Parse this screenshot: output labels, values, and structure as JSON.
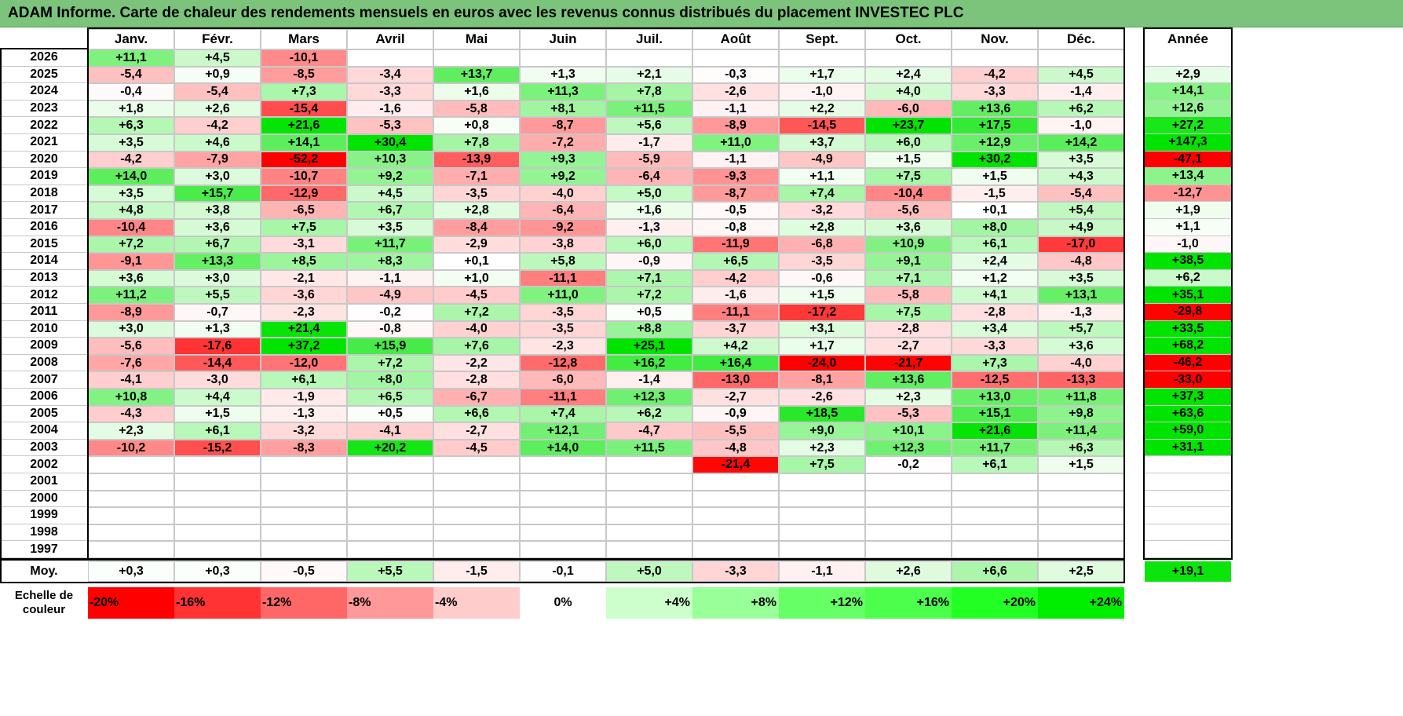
{
  "title": "ADAM Informe. Carte de chaleur des rendements mensuels en euros avec les revenus connus distribués du placement INVESTEC PLC",
  "chart_data": {
    "type": "heatmap",
    "title": "ADAM Informe. Carte de chaleur des rendements mensuels en euros avec les revenus connus distribués du placement INVESTEC PLC",
    "months": [
      "Janv.",
      "Févr.",
      "Mars",
      "Avril",
      "Mai",
      "Juin",
      "Juil.",
      "Août",
      "Sept.",
      "Oct.",
      "Nov.",
      "Déc."
    ],
    "annual_label": "Année",
    "rows": [
      {
        "year": "2026",
        "values": [
          "+11,1",
          "+4,5",
          "-10,1",
          "",
          "",
          "",
          "",
          "",
          "",
          "",
          "",
          ""
        ],
        "annual": ""
      },
      {
        "year": "2025",
        "values": [
          "-5,4",
          "+0,9",
          "-8,5",
          "-3,4",
          "+13,7",
          "+1,3",
          "+2,1",
          "-0,3",
          "+1,7",
          "+2,4",
          "-4,2",
          "+4,5"
        ],
        "annual": "+2,9"
      },
      {
        "year": "2024",
        "values": [
          "-0,4",
          "-5,4",
          "+7,3",
          "-3,3",
          "+1,6",
          "+11,3",
          "+7,8",
          "-2,6",
          "-1,0",
          "+4,0",
          "-3,3",
          "-1,4"
        ],
        "annual": "+14,1"
      },
      {
        "year": "2023",
        "values": [
          "+1,8",
          "+2,6",
          "-15,4",
          "-1,6",
          "-5,8",
          "+8,1",
          "+11,5",
          "-1,1",
          "+2,2",
          "-6,0",
          "+13,6",
          "+6,2"
        ],
        "annual": "+12,6"
      },
      {
        "year": "2022",
        "values": [
          "+6,3",
          "-4,2",
          "+21,6",
          "-5,3",
          "+0,8",
          "-8,7",
          "+5,6",
          "-8,9",
          "-14,5",
          "+23,7",
          "+17,5",
          "-1,0"
        ],
        "annual": "+27,2"
      },
      {
        "year": "2021",
        "values": [
          "+3,5",
          "+4,6",
          "+14,1",
          "+30,4",
          "+7,8",
          "-7,2",
          "-1,7",
          "+11,0",
          "+3,7",
          "+6,0",
          "+12,9",
          "+14,2"
        ],
        "annual": "+147,3"
      },
      {
        "year": "2020",
        "values": [
          "-4,2",
          "-7,9",
          "-52,2",
          "+10,3",
          "-13,9",
          "+9,3",
          "-5,9",
          "-1,1",
          "-4,9",
          "+1,5",
          "+30,2",
          "+3,5"
        ],
        "annual": "-47,1"
      },
      {
        "year": "2019",
        "values": [
          "+14,0",
          "+3,0",
          "-10,7",
          "+9,2",
          "-7,1",
          "+9,2",
          "-6,4",
          "-9,3",
          "+1,1",
          "+7,5",
          "+1,5",
          "+4,3"
        ],
        "annual": "+13,4"
      },
      {
        "year": "2018",
        "values": [
          "+3,5",
          "+15,7",
          "-12,9",
          "+4,5",
          "-3,5",
          "-4,0",
          "+5,0",
          "-8,7",
          "+7,4",
          "-10,4",
          "-1,5",
          "-5,4"
        ],
        "annual": "-12,7"
      },
      {
        "year": "2017",
        "values": [
          "+4,8",
          "+3,8",
          "-6,5",
          "+6,7",
          "+2,8",
          "-6,4",
          "+1,6",
          "-0,5",
          "-3,2",
          "-5,6",
          "+0,1",
          "+5,4"
        ],
        "annual": "+1,9"
      },
      {
        "year": "2016",
        "values": [
          "-10,4",
          "+3,6",
          "+7,5",
          "+3,5",
          "-8,4",
          "-9,2",
          "-1,3",
          "-0,8",
          "+2,8",
          "+3,6",
          "+8,0",
          "+4,9"
        ],
        "annual": "+1,1"
      },
      {
        "year": "2015",
        "values": [
          "+7,2",
          "+6,7",
          "-3,1",
          "+11,7",
          "-2,9",
          "-3,8",
          "+6,0",
          "-11,9",
          "-6,8",
          "+10,9",
          "+6,1",
          "-17,0"
        ],
        "annual": "-1,0"
      },
      {
        "year": "2014",
        "values": [
          "-9,1",
          "+13,3",
          "+8,5",
          "+8,3",
          "+0,1",
          "+5,8",
          "-0,9",
          "+6,5",
          "-3,5",
          "+9,1",
          "+2,4",
          "-4,8"
        ],
        "annual": "+38,5"
      },
      {
        "year": "2013",
        "values": [
          "+3,6",
          "+3,0",
          "-2,1",
          "-1,1",
          "+1,0",
          "-11,1",
          "+7,1",
          "-4,2",
          "-0,6",
          "+7,1",
          "+1,2",
          "+3,5"
        ],
        "annual": "+6,2"
      },
      {
        "year": "2012",
        "values": [
          "+11,2",
          "+5,5",
          "-3,6",
          "-4,9",
          "-4,5",
          "+11,0",
          "+7,2",
          "-1,6",
          "+1,5",
          "-5,8",
          "+4,1",
          "+13,1"
        ],
        "annual": "+35,1"
      },
      {
        "year": "2011",
        "values": [
          "-8,9",
          "-0,7",
          "-2,3",
          "-0,2",
          "+7,2",
          "-3,5",
          "+0,5",
          "-11,1",
          "-17,2",
          "+7,5",
          "-2,8",
          "-1,3"
        ],
        "annual": "-29,8"
      },
      {
        "year": "2010",
        "values": [
          "+3,0",
          "+1,3",
          "+21,4",
          "-0,8",
          "-4,0",
          "-3,5",
          "+8,8",
          "-3,7",
          "+3,1",
          "-2,8",
          "+3,4",
          "+5,7"
        ],
        "annual": "+33,5"
      },
      {
        "year": "2009",
        "values": [
          "-5,6",
          "-17,6",
          "+37,2",
          "+15,9",
          "+7,6",
          "-2,3",
          "+25,1",
          "+4,2",
          "+1,7",
          "-2,7",
          "-3,3",
          "+3,6"
        ],
        "annual": "+68,2"
      },
      {
        "year": "2008",
        "values": [
          "-7,6",
          "-14,4",
          "-12,0",
          "+7,2",
          "-2,2",
          "-12,8",
          "+16,2",
          "+16,4",
          "-24,0",
          "-21,7",
          "+7,3",
          "-4,0"
        ],
        "annual": "-46,2"
      },
      {
        "year": "2007",
        "values": [
          "-4,1",
          "-3,0",
          "+6,1",
          "+8,0",
          "-2,8",
          "-6,0",
          "-1,4",
          "-13,0",
          "-8,1",
          "+13,6",
          "-12,5",
          "-13,3"
        ],
        "annual": "-33,0"
      },
      {
        "year": "2006",
        "values": [
          "+10,8",
          "+4,4",
          "-1,9",
          "+6,5",
          "-6,7",
          "-11,1",
          "+12,3",
          "-2,7",
          "-2,6",
          "+2,3",
          "+13,0",
          "+11,8"
        ],
        "annual": "+37,3"
      },
      {
        "year": "2005",
        "values": [
          "-4,3",
          "+1,5",
          "-1,3",
          "+0,5",
          "+6,6",
          "+7,4",
          "+6,2",
          "-0,9",
          "+18,5",
          "-5,3",
          "+15,1",
          "+9,8"
        ],
        "annual": "+63,6"
      },
      {
        "year": "2004",
        "values": [
          "+2,3",
          "+6,1",
          "-3,2",
          "-4,1",
          "-2,7",
          "+12,1",
          "-4,7",
          "-5,5",
          "+9,0",
          "+10,1",
          "+21,6",
          "+11,4"
        ],
        "annual": "+59,0"
      },
      {
        "year": "2003",
        "values": [
          "-10,2",
          "-15,2",
          "-8,3",
          "+20,2",
          "-4,5",
          "+14,0",
          "+11,5",
          "-4,8",
          "+2,3",
          "+12,3",
          "+11,7",
          "+6,3"
        ],
        "annual": "+31,1"
      },
      {
        "year": "2002",
        "values": [
          "",
          "",
          "",
          "",
          "",
          "",
          "",
          "-21,4",
          "+7,5",
          "-0,2",
          "+6,1",
          "+1,5"
        ],
        "annual": ""
      },
      {
        "year": "2001",
        "values": [
          "",
          "",
          "",
          "",
          "",
          "",
          "",
          "",
          "",
          "",
          "",
          ""
        ],
        "annual": ""
      },
      {
        "year": "2000",
        "values": [
          "",
          "",
          "",
          "",
          "",
          "",
          "",
          "",
          "",
          "",
          "",
          ""
        ],
        "annual": ""
      },
      {
        "year": "1999",
        "values": [
          "",
          "",
          "",
          "",
          "",
          "",
          "",
          "",
          "",
          "",
          "",
          ""
        ],
        "annual": ""
      },
      {
        "year": "1998",
        "values": [
          "",
          "",
          "",
          "",
          "",
          "",
          "",
          "",
          "",
          "",
          "",
          ""
        ],
        "annual": ""
      },
      {
        "year": "1997",
        "values": [
          "",
          "",
          "",
          "",
          "",
          "",
          "",
          "",
          "",
          "",
          "",
          ""
        ],
        "annual": ""
      }
    ],
    "average": {
      "label": "Moy.",
      "values": [
        "+0,3",
        "+0,3",
        "-0,5",
        "+5,5",
        "-1,5",
        "-0,1",
        "+5,0",
        "-3,3",
        "-1,1",
        "+2,6",
        "+6,6",
        "+2,5"
      ],
      "annual": "+19,1"
    },
    "scale": {
      "label_line1": "Echelle de",
      "label_line2": "couleur",
      "steps": [
        {
          "label": "-20%",
          "color": "#ff0000"
        },
        {
          "label": "-16%",
          "color": "#ff3333"
        },
        {
          "label": "-12%",
          "color": "#ff6666"
        },
        {
          "label": "-8%",
          "color": "#ff9999"
        },
        {
          "label": "-4%",
          "color": "#ffcccc"
        },
        {
          "label": "0%",
          "color": "#ffffff"
        },
        {
          "label": "+4%",
          "color": "#ccffcc"
        },
        {
          "label": "+8%",
          "color": "#99ff99"
        },
        {
          "label": "+12%",
          "color": "#66ff66"
        },
        {
          "label": "+16%",
          "color": "#4cff4c"
        },
        {
          "label": "+20%",
          "color": "#22ff22"
        },
        {
          "label": "+24%",
          "color": "#00ee00"
        }
      ]
    }
  }
}
